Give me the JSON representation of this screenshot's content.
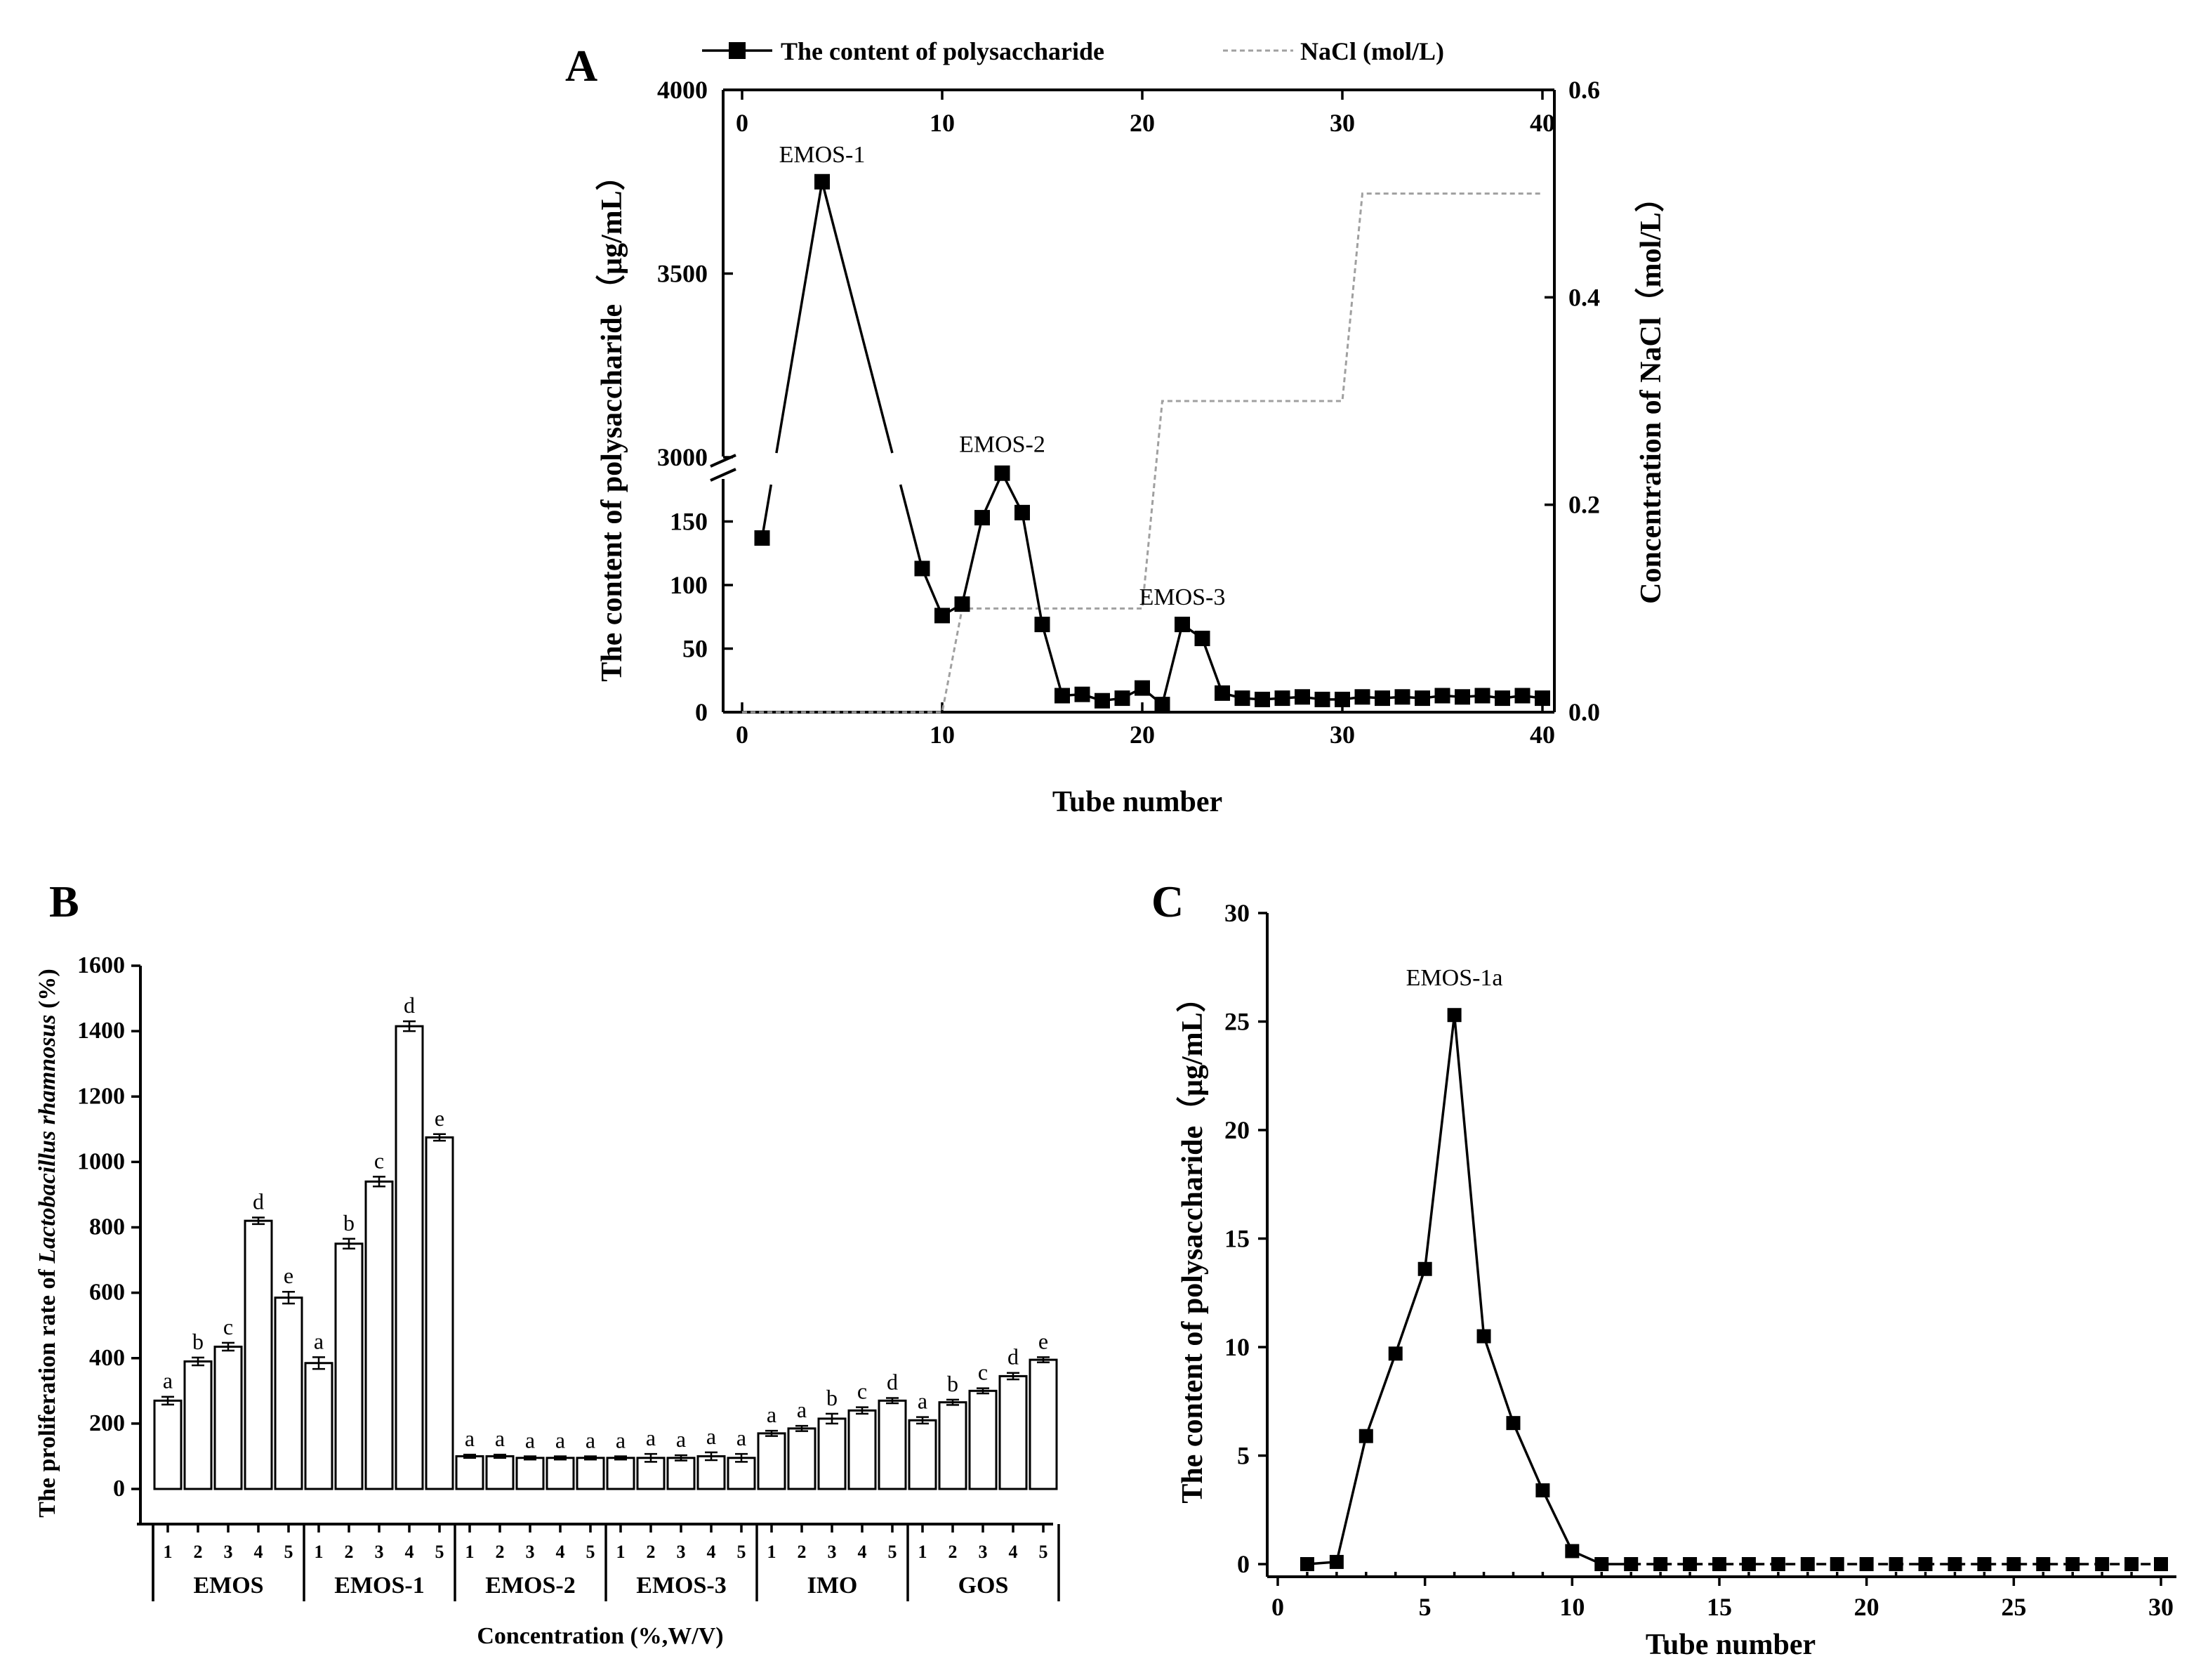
{
  "chart_data": [
    {
      "panel": "A",
      "type": "line",
      "xlabel": "Tube number",
      "ylabel": "The content of polysaccharide（μg/mL）",
      "y2label": "Concentration of NaCl（mol/L）",
      "xlim": [
        0,
        40
      ],
      "x_ticks": [
        0,
        10,
        20,
        30,
        40
      ],
      "y_ticks_lower": [
        0,
        50,
        100,
        150
      ],
      "y_ticks_upper": [
        3000,
        3500,
        4000
      ],
      "y2_ticks": [
        "0.0",
        "0.2",
        "0.4",
        "0.6"
      ],
      "y2lim": [
        0,
        0.6
      ],
      "legend": [
        "The content of polysaccharide",
        "NaCl (mol/L)"
      ],
      "annotations": [
        "EMOS-1",
        "EMOS-2",
        "EMOS-3"
      ],
      "annotation_x": [
        4,
        13,
        22
      ],
      "series": [
        {
          "name": "The content of polysaccharide",
          "x": [
            1,
            4,
            9,
            10,
            11,
            12,
            13,
            14,
            15,
            16,
            17,
            18,
            19,
            20,
            21,
            22,
            23,
            24,
            25,
            26,
            27,
            28,
            29,
            30,
            31,
            32,
            33,
            34,
            35,
            36,
            37,
            38,
            39,
            40
          ],
          "y": [
            137,
            3750,
            113,
            76,
            85,
            153,
            188,
            157,
            69,
            13,
            14,
            9,
            11,
            19,
            6,
            69,
            58,
            15,
            11,
            10,
            11,
            12,
            10,
            10,
            12,
            11,
            12,
            11,
            13,
            12,
            13,
            11,
            13,
            11
          ],
          "hidden_segment": [
            {
              "from": [
                1,
                137
              ],
              "to": [
                4,
                3750
              ]
            },
            {
              "from": [
                4,
                3750
              ],
              "to": [
                9,
                113
              ]
            }
          ]
        },
        {
          "name": "NaCl (mol/L)",
          "x": [
            0,
            10,
            11,
            20,
            21,
            30,
            31,
            40
          ],
          "y": [
            0,
            0,
            0.1,
            0.1,
            0.3,
            0.3,
            0.5,
            0.5
          ]
        }
      ]
    },
    {
      "panel": "B",
      "type": "bar",
      "xlabel": "Concentration (%,W/V)",
      "ylabel_prefix": "The proliferation rate of ",
      "ylabel_italic": "Lactobacillus rhamnosus",
      "ylabel_suffix": " (%)",
      "ylim": [
        0,
        1600
      ],
      "y_ticks": [
        0,
        200,
        400,
        600,
        800,
        1000,
        1200,
        1400,
        1600
      ],
      "sub_categories": [
        "1",
        "2",
        "3",
        "4",
        "5"
      ],
      "groups": [
        {
          "name": "EMOS",
          "values": [
            270,
            390,
            435,
            820,
            585
          ],
          "errors": [
            12,
            12,
            12,
            10,
            18
          ],
          "letters": [
            "a",
            "b",
            "c",
            "d",
            "e"
          ]
        },
        {
          "name": "EMOS-1",
          "values": [
            385,
            750,
            940,
            1415,
            1075
          ],
          "errors": [
            18,
            15,
            15,
            15,
            10
          ],
          "letters": [
            "a",
            "b",
            "c",
            "d",
            "e"
          ]
        },
        {
          "name": "EMOS-2",
          "values": [
            100,
            100,
            95,
            95,
            95
          ],
          "errors": [
            5,
            5,
            5,
            5,
            5
          ],
          "letters": [
            "a",
            "a",
            "a",
            "a",
            "a"
          ]
        },
        {
          "name": "EMOS-3",
          "values": [
            95,
            95,
            95,
            100,
            95
          ],
          "errors": [
            5,
            12,
            8,
            12,
            12
          ],
          "letters": [
            "a",
            "a",
            "a",
            "a",
            "a"
          ]
        },
        {
          "name": "IMO",
          "values": [
            170,
            185,
            215,
            240,
            270
          ],
          "errors": [
            8,
            8,
            15,
            10,
            8
          ],
          "letters": [
            "a",
            "a",
            "b",
            "c",
            "d"
          ]
        },
        {
          "name": "GOS",
          "values": [
            210,
            265,
            300,
            345,
            395
          ],
          "errors": [
            10,
            8,
            8,
            10,
            8
          ],
          "letters": [
            "a",
            "b",
            "c",
            "d",
            "e"
          ]
        }
      ]
    },
    {
      "panel": "C",
      "type": "line",
      "xlabel": "Tube number",
      "ylabel": "The content of polysaccharide（μg/mL）",
      "xlim": [
        0,
        30
      ],
      "ylim": [
        0,
        30
      ],
      "x_ticks": [
        0,
        5,
        10,
        15,
        20,
        25,
        30
      ],
      "y_ticks": [
        0,
        5,
        10,
        15,
        20,
        25,
        30
      ],
      "annotations": [
        "EMOS-1a"
      ],
      "annotation_x": [
        6
      ],
      "series": [
        {
          "name": "The content of polysaccharide",
          "x": [
            1,
            2,
            3,
            4,
            5,
            6,
            7,
            8,
            9,
            10,
            11,
            12,
            13,
            14,
            15,
            16,
            17,
            18,
            19,
            20,
            21,
            22,
            23,
            24,
            25,
            26,
            27,
            28,
            29,
            30
          ],
          "y": [
            0,
            0.1,
            5.9,
            9.7,
            13.6,
            25.3,
            10.5,
            6.5,
            3.4,
            0.6,
            0,
            0,
            0,
            0,
            0,
            0,
            0,
            0,
            0,
            0,
            0,
            0,
            0,
            0,
            0,
            0,
            0,
            0,
            0,
            0
          ]
        }
      ]
    }
  ]
}
